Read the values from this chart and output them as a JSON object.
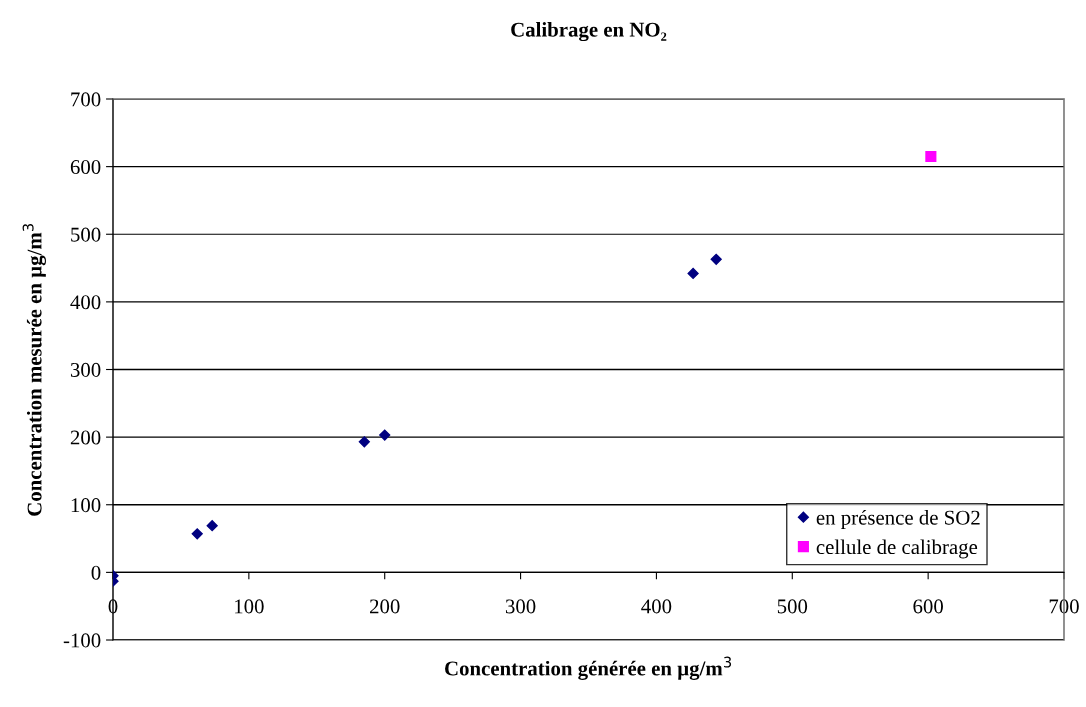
{
  "chart_data": {
    "type": "scatter",
    "title": "Calibrage en NO₂",
    "xlabel": "Concentration générée en µg/m$^{3}$",
    "ylabel": "Concentration mesurée en µg/m$^{3}$",
    "series": [
      {
        "name": "en présence de SO2",
        "color": "#000080",
        "marker": "diamond",
        "x": [
          0,
          0,
          62,
          73,
          185,
          200,
          427,
          444
        ],
        "values": [
          -5,
          -13,
          57,
          69,
          193,
          203,
          442,
          463
        ]
      },
      {
        "name": "cellule de calibrage",
        "color": "#ff00ff",
        "marker": "square",
        "x": [
          602
        ],
        "values": [
          615
        ]
      }
    ],
    "xlim": [
      0,
      700
    ],
    "xticks": [
      0,
      100,
      200,
      300,
      400,
      500,
      600,
      700
    ],
    "ylim": [
      -100,
      700
    ],
    "yticks": [
      -100,
      0,
      100,
      200,
      300,
      400,
      500,
      600,
      700
    ],
    "grid": "y",
    "legend": "bottom right"
  }
}
